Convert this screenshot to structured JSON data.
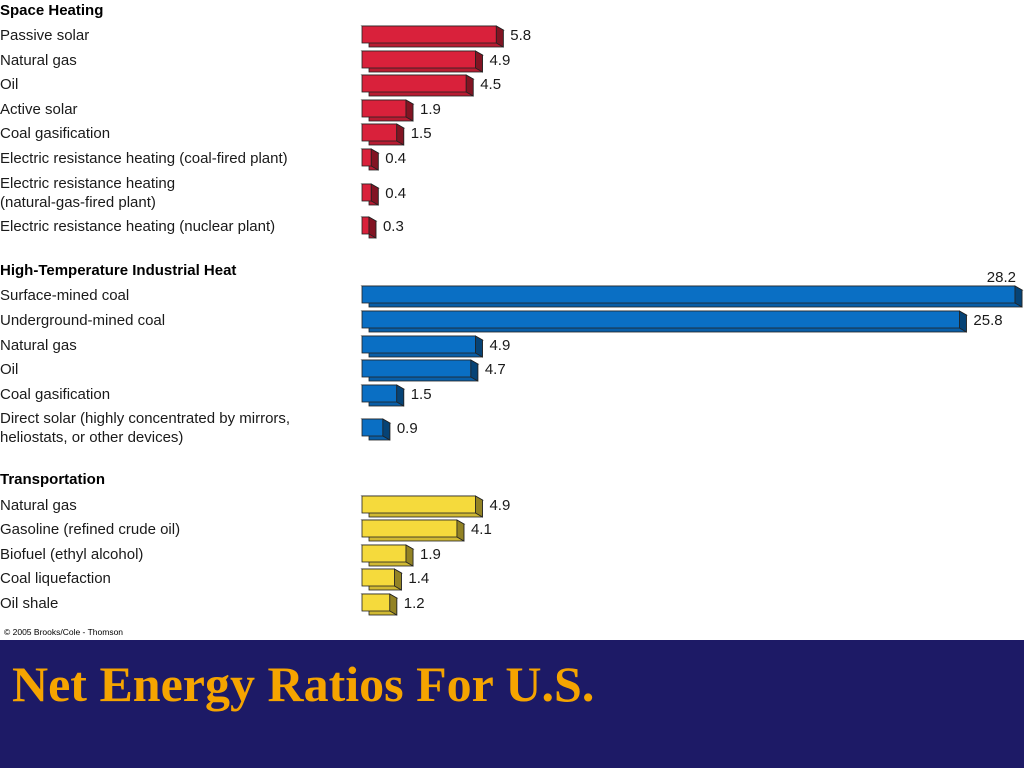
{
  "slide_title": "Net Energy Ratios For U.S.",
  "copyright": "© 2005 Brooks/Cole - Thomson",
  "colors": {
    "banner": "#1d1a66",
    "title": "#f5a400"
  },
  "chart_data": {
    "type": "bar",
    "orientation": "horizontal",
    "groups": [
      {
        "name": "Space Heating",
        "color": "#d9213b",
        "categories": [
          "Passive solar",
          "Natural gas",
          "Oil",
          "Active solar",
          "Coal gasification",
          "Electric resistance heating (coal-fired plant)",
          "Electric resistance heating\n(natural-gas-fired plant)",
          "Electric resistance heating (nuclear plant)"
        ],
        "values": [
          5.8,
          4.9,
          4.5,
          1.9,
          1.5,
          0.4,
          0.4,
          0.3
        ]
      },
      {
        "name": "High-Temperature Industrial Heat",
        "color": "#0a6fc4",
        "categories": [
          "Surface-mined coal",
          "Underground-mined coal",
          "Natural gas",
          "Oil",
          "Coal gasification",
          "Direct solar (highly concentrated by mirrors,\nheliostats, or other devices)"
        ],
        "values": [
          28.2,
          25.8,
          4.9,
          4.7,
          1.5,
          0.9
        ]
      },
      {
        "name": "Transportation",
        "color": "#f5da3c",
        "categories": [
          "Natural gas",
          "Gasoline (refined crude oil)",
          "Biofuel (ethyl alcohol)",
          "Coal liquefaction",
          "Oil shale"
        ],
        "values": [
          4.9,
          4.1,
          1.9,
          1.4,
          1.2
        ]
      }
    ]
  }
}
